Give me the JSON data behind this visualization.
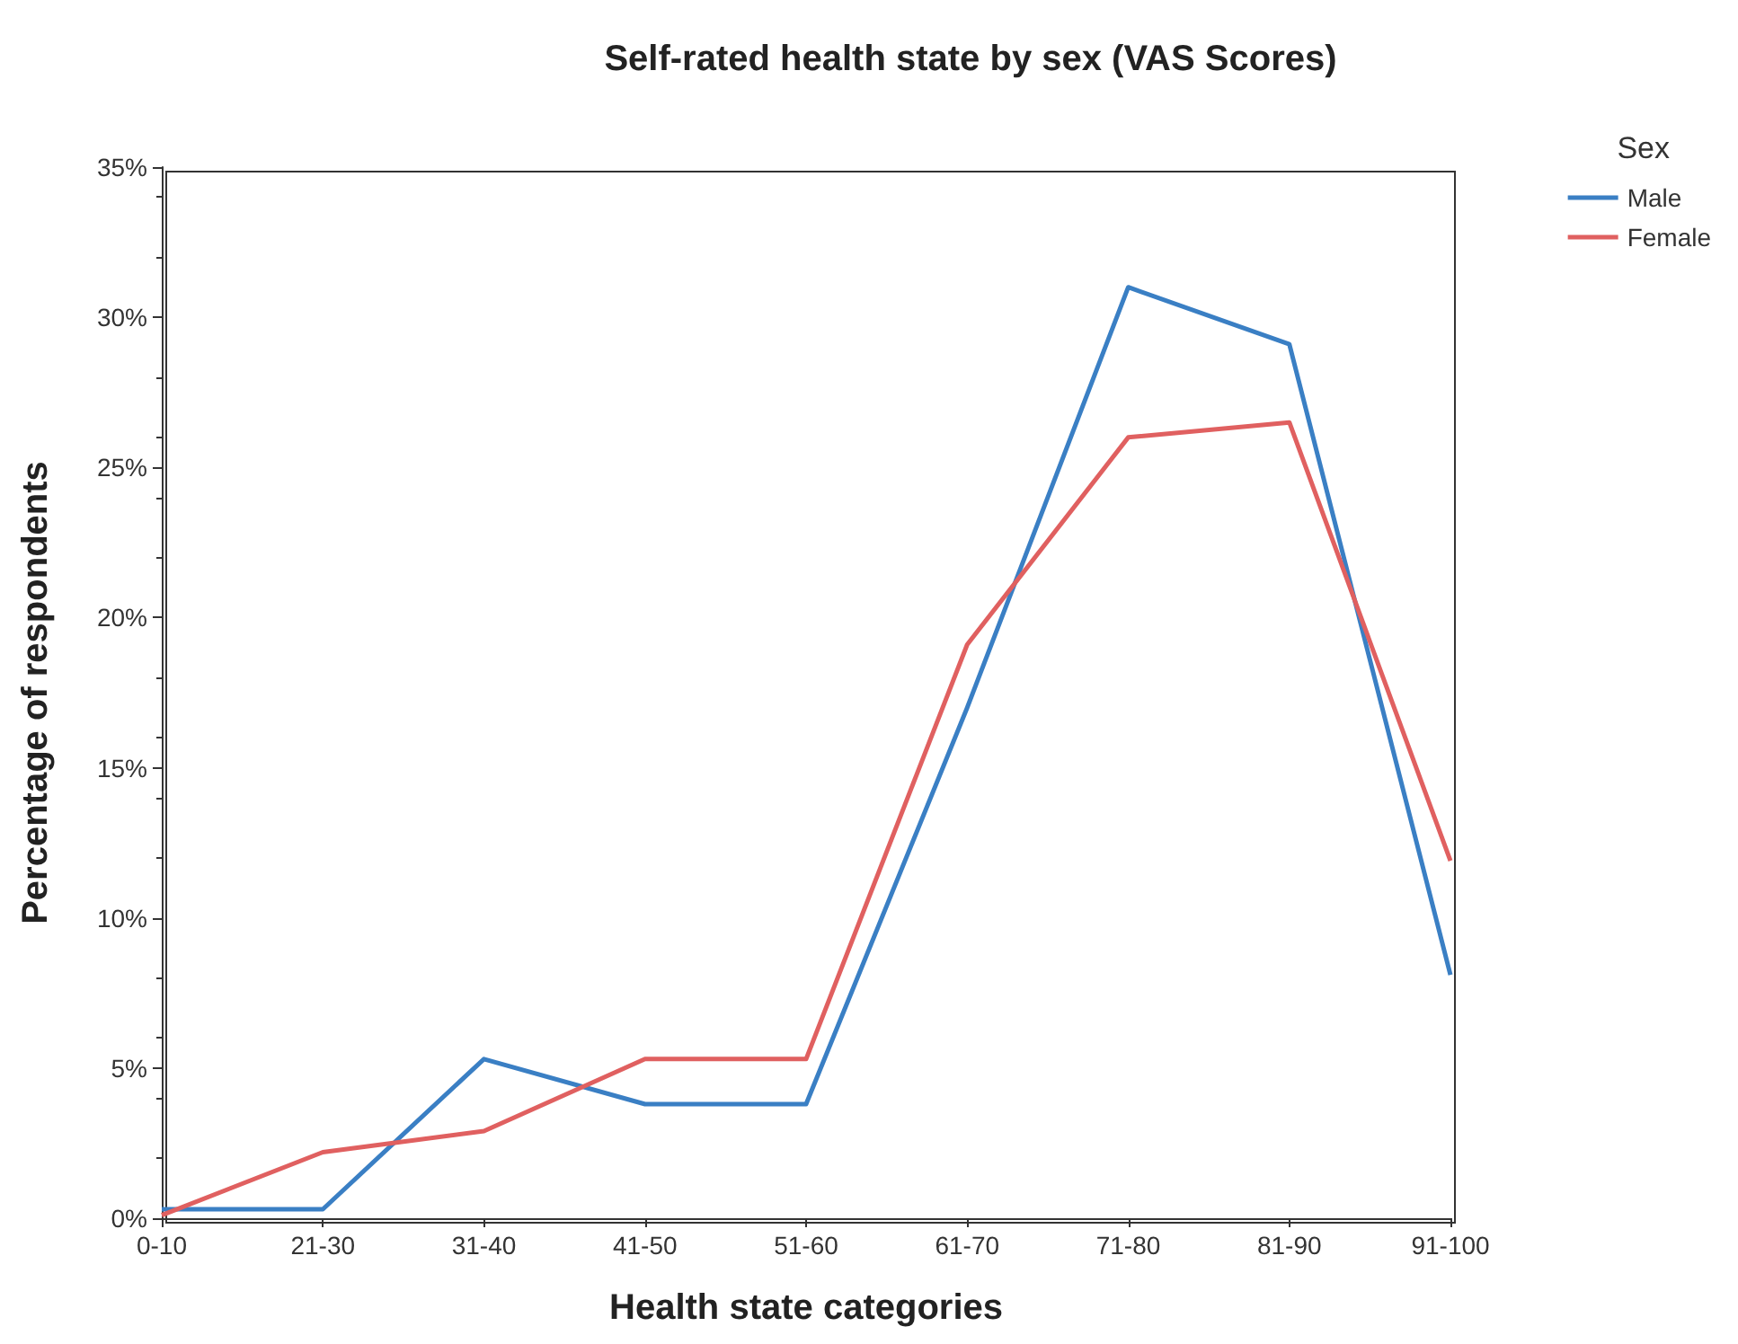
{
  "chart_data": {
    "type": "line",
    "title": "Self-rated health state by sex (VAS Scores)",
    "xlabel": "Health state categories",
    "ylabel": "Percentage of respondents",
    "legend_title": "Sex",
    "categories": [
      "0-10",
      "21-30",
      "31-40",
      "41-50",
      "51-60",
      "61-70",
      "71-80",
      "81-90",
      "91-100"
    ],
    "series": [
      {
        "name": "Male",
        "color": "#3a7fc4",
        "values": [
          0.3,
          0.3,
          5.3,
          3.8,
          3.8,
          17,
          31,
          29.1,
          8.1
        ]
      },
      {
        "name": "Female",
        "color": "#e06060",
        "values": [
          0.1,
          2.2,
          2.9,
          5.3,
          5.3,
          19.1,
          26,
          26.5,
          11.9
        ]
      }
    ],
    "ylim": [
      0,
      35
    ],
    "yticks": [
      {
        "value": 0,
        "label": "0%"
      },
      {
        "value": 5,
        "label": "5%"
      },
      {
        "value": 10,
        "label": "10%"
      },
      {
        "value": 15,
        "label": "15%"
      },
      {
        "value": 20,
        "label": "20%"
      },
      {
        "value": 25,
        "label": "25%"
      },
      {
        "value": 30,
        "label": "30%"
      },
      {
        "value": 35,
        "label": "35%"
      }
    ],
    "grid": false,
    "legend": "right",
    "marker": "none",
    "line_style": "solid"
  }
}
